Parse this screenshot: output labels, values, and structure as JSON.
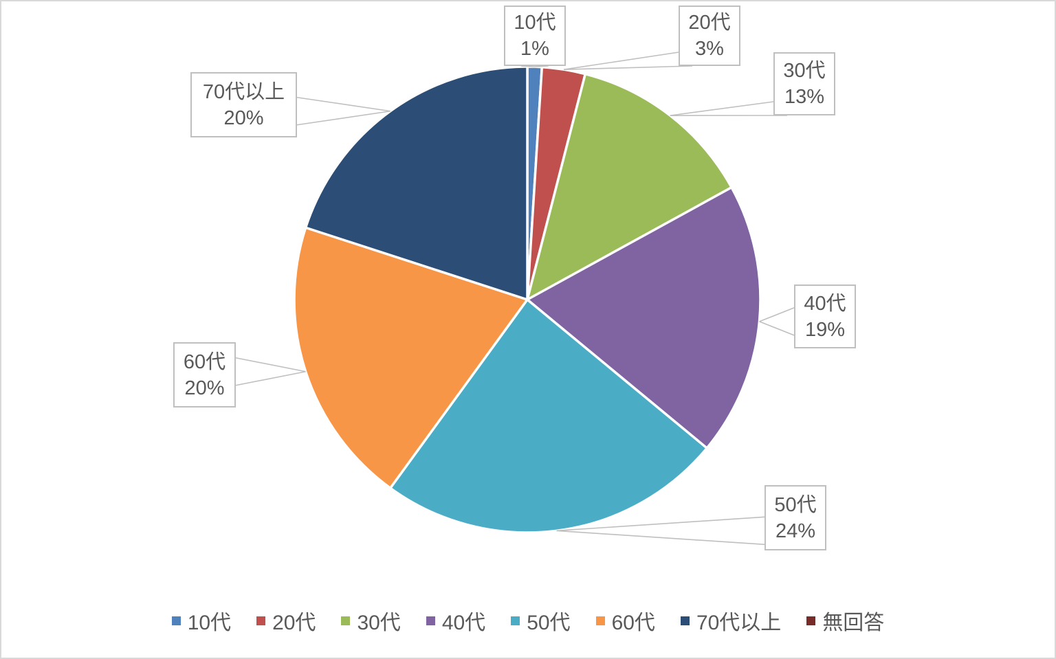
{
  "window": {
    "background": "#FFFFFF",
    "border_color": "#D9D9D9"
  },
  "chart_data": {
    "type": "pie",
    "title": "",
    "categories": [
      "10代",
      "20代",
      "30代",
      "40代",
      "50代",
      "60代",
      "70代以上",
      "無回答"
    ],
    "values": [
      1,
      3,
      13,
      19,
      24,
      20,
      20,
      0
    ],
    "unit": "%",
    "colors": [
      "#4F81BD",
      "#C0504D",
      "#9BBB59",
      "#8064A2",
      "#4BACC6",
      "#F79646",
      "#2C4D75",
      "#772C2A"
    ],
    "start_angle_deg": 0,
    "direction": "clockwise",
    "legend_position": "bottom",
    "data_labels": [
      {
        "text": "10代",
        "value": "1%"
      },
      {
        "text": "20代",
        "value": "3%"
      },
      {
        "text": "30代",
        "value": "13%"
      },
      {
        "text": "40代",
        "value": "19%"
      },
      {
        "text": "50代",
        "value": "24%"
      },
      {
        "text": "60代",
        "value": "20%"
      },
      {
        "text": "70代以上",
        "value": "20%"
      }
    ],
    "label_text_color": "#595959",
    "leader_line_color": "#BFBFBF",
    "callout_border_color": "#BFBFBF",
    "callout_fill": "#FFFFFF",
    "slice_border_color": "#FFFFFF"
  }
}
